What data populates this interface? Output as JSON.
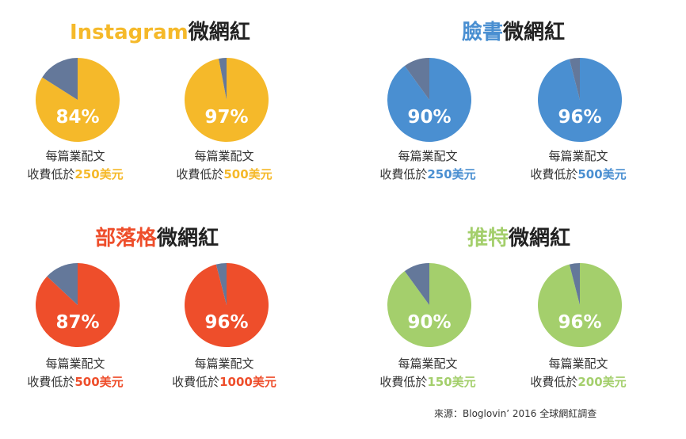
{
  "colors": {
    "instagram": "#F5B92A",
    "facebook": "#4A8FD1",
    "blog": "#EE4E2B",
    "twitter": "#A4CF6C",
    "minority_slice": "#64789A",
    "text": "#333333"
  },
  "caption_line1": "每篇業配文",
  "caption_prefix": "收費低於",
  "source": "來源：Bloglovin’  2016 全球網紅調查",
  "chart_data": {
    "type": "pie",
    "panels": [
      {
        "title_brand": "Instagram",
        "title_suffix": "微網紅",
        "color_key": "instagram",
        "pies": [
          {
            "percent": 84,
            "label": "84%",
            "price": "250美元"
          },
          {
            "percent": 97,
            "label": "97%",
            "price": "500美元"
          }
        ]
      },
      {
        "title_brand": "臉書",
        "title_suffix": "微網紅",
        "color_key": "facebook",
        "pies": [
          {
            "percent": 90,
            "label": "90%",
            "price": "250美元"
          },
          {
            "percent": 96,
            "label": "96%",
            "price": "500美元"
          }
        ]
      },
      {
        "title_brand": "部落格",
        "title_suffix": "微網紅",
        "color_key": "blog",
        "pies": [
          {
            "percent": 87,
            "label": "87%",
            "price": "500美元"
          },
          {
            "percent": 96,
            "label": "96%",
            "price": "1000美元"
          }
        ]
      },
      {
        "title_brand": "推特",
        "title_suffix": "微網紅",
        "color_key": "twitter",
        "pies": [
          {
            "percent": 90,
            "label": "90%",
            "price": "150美元"
          },
          {
            "percent": 96,
            "label": "96%",
            "price": "200美元"
          }
        ]
      }
    ]
  }
}
